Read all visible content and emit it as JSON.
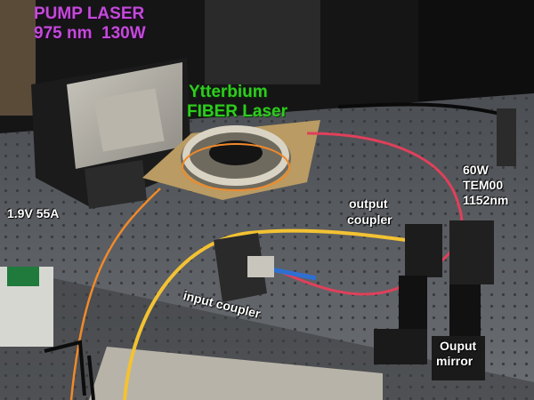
{
  "labels": {
    "pump_line1": "PUMP LASER",
    "pump_line2": "975 nm  130W",
    "fiber_line1": "Ytterbium",
    "fiber_line2": "FIBER Laser",
    "driver": "1.9V 55A",
    "output_coupler_line1": "output",
    "output_coupler_line2": "coupler",
    "power_line1": "60W",
    "power_line2": "TEM00",
    "power_line3": "1152nm",
    "input_coupler": "input coupler",
    "output_mirror_line1": "Ouput",
    "output_mirror_line2": "mirror"
  },
  "colors": {
    "pump_label": "#c24bd9",
    "fiber_label": "#2ecc1f",
    "table": "#5a5d62",
    "orange_fiber": "#f08a2a",
    "red_fiber": "#e0405a",
    "yellow_fiber": "#f3c233"
  }
}
